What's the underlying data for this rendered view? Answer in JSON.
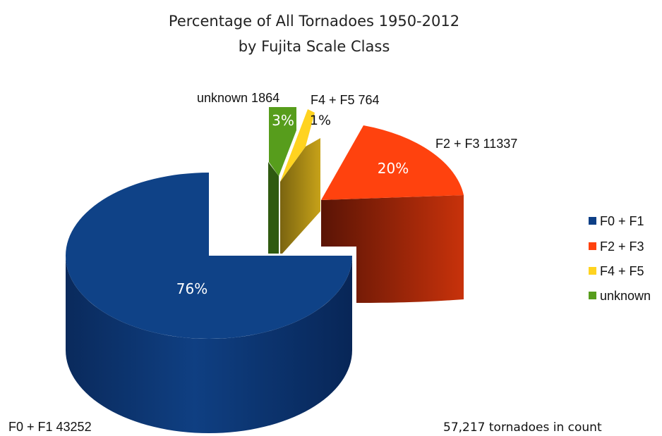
{
  "chart_data": {
    "type": "pie",
    "title": "Percentage of All Tornadoes 1950-2012",
    "subtitle": "by Fujita Scale Class",
    "slices": [
      {
        "name": "F0 + F1",
        "value": 43252,
        "percent_label": "76%",
        "label": "F0 + F1 43252",
        "color": "#0d3f86"
      },
      {
        "name": "F2 + F3",
        "value": 11337,
        "percent_label": "20%",
        "label": "F2 + F3 11337",
        "color": "#ff420e"
      },
      {
        "name": "F4 + F5",
        "value": 764,
        "percent_label": "1%",
        "label": "F4 + F5 764",
        "color": "#ffd320"
      },
      {
        "name": "unknown",
        "value": 1864,
        "percent_label": "3%",
        "label": "unknown 1864",
        "color": "#579d1c"
      }
    ],
    "legend": {
      "position": "right",
      "items": [
        "F0 + F1",
        "F2 + F3",
        "F4 + F5",
        "unknown"
      ]
    },
    "annotation": "57,217 tornadoes in count"
  }
}
